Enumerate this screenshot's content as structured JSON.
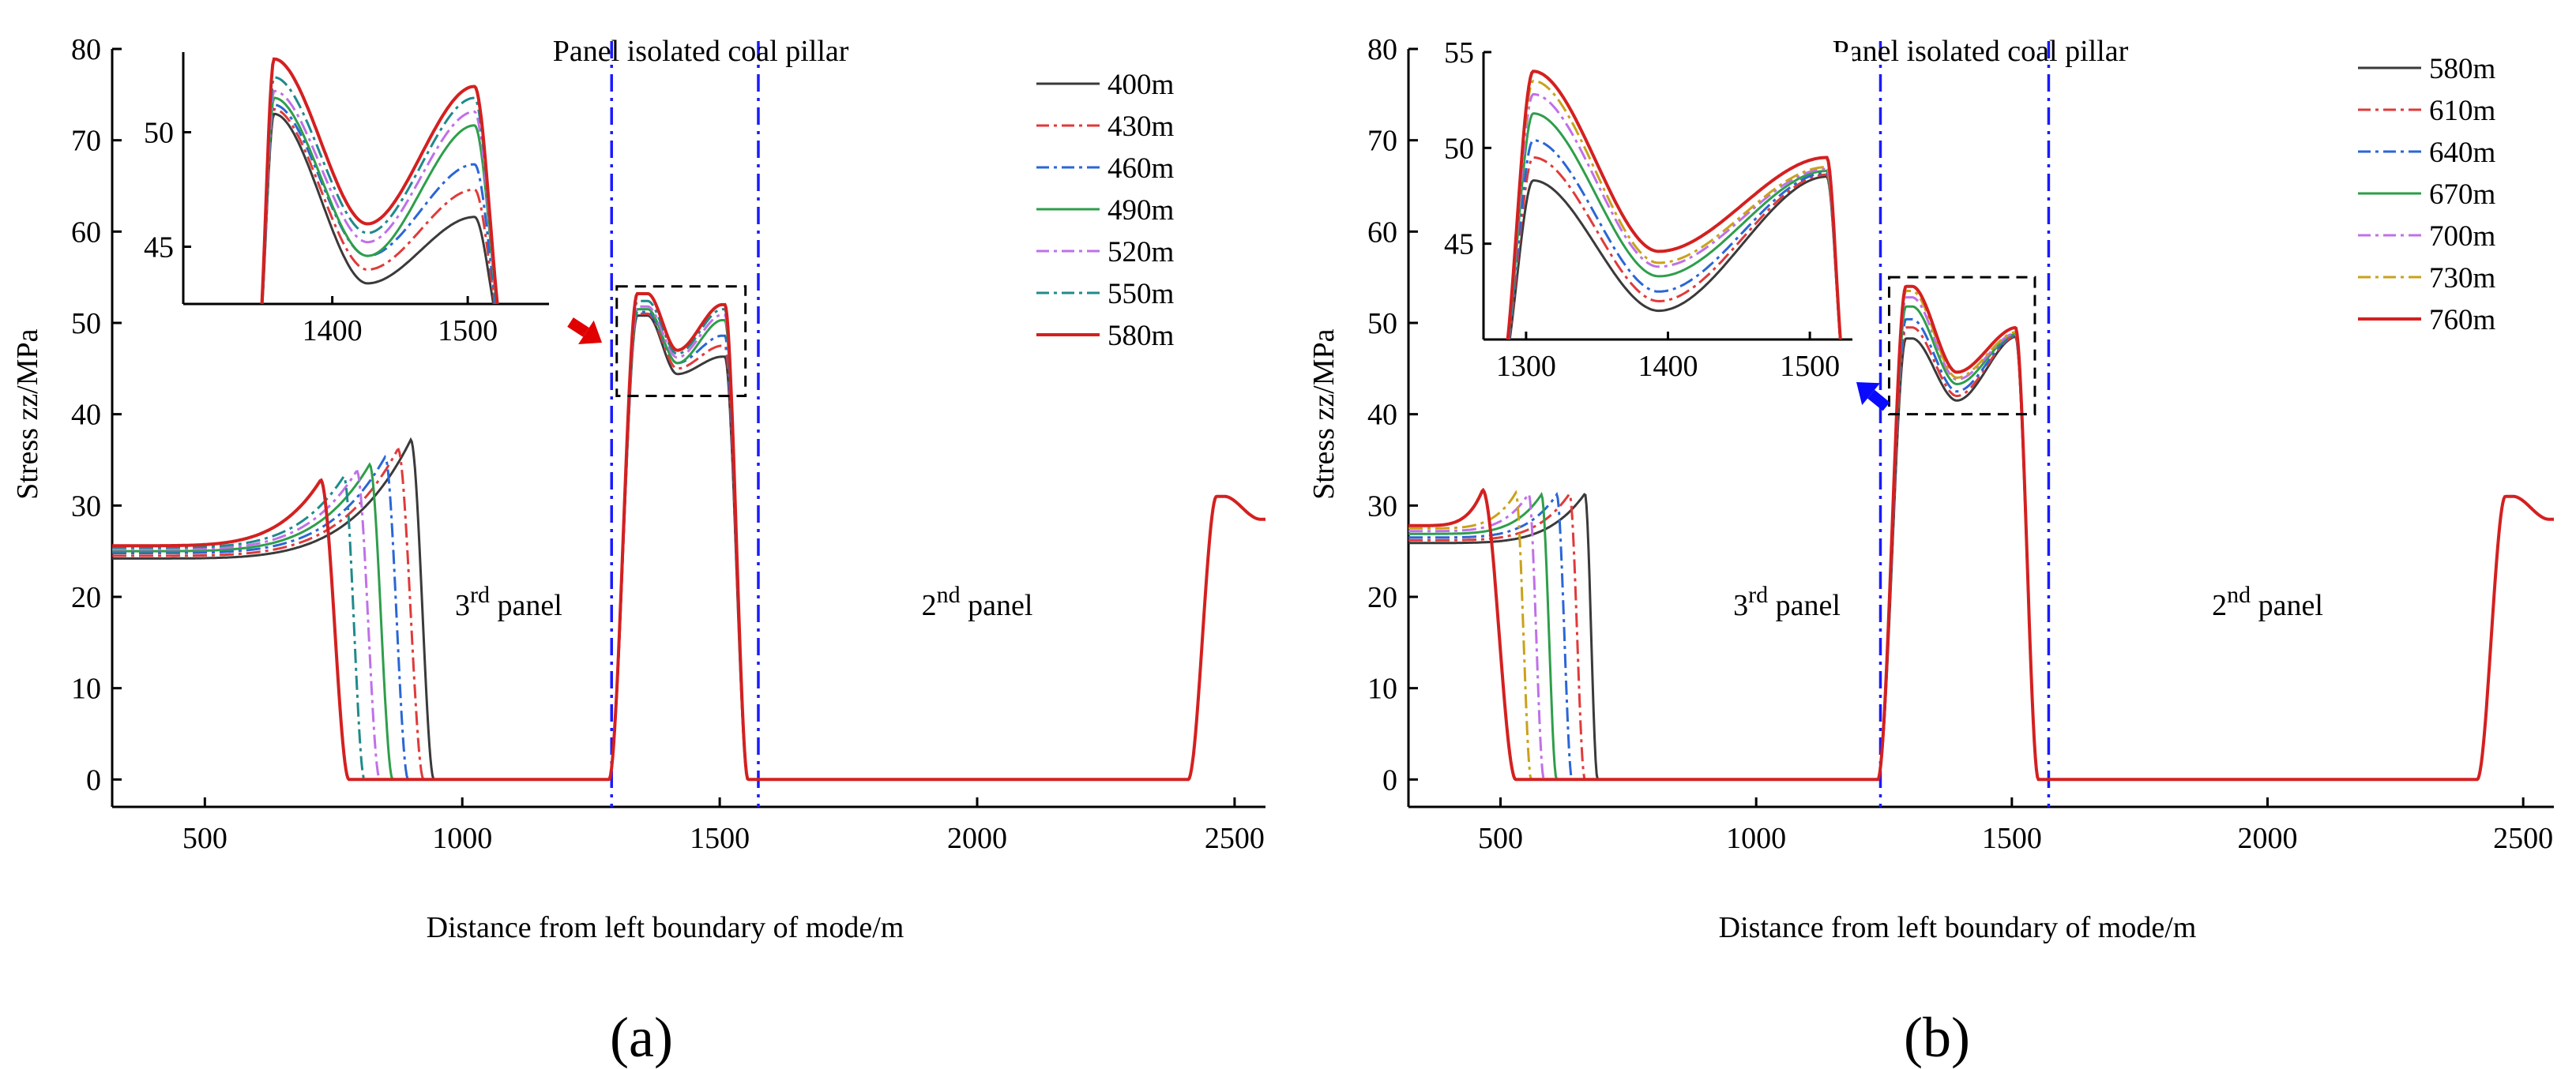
{
  "chart_data": [
    {
      "type": "line",
      "id": "a",
      "caption": "(a)",
      "title": "",
      "xlabel": "Distance from left boundary of mode/m",
      "ylabel": "Stress zz/MPa",
      "xlim": [
        320,
        2560
      ],
      "ylim": [
        -3,
        80
      ],
      "xticks": [
        500,
        1000,
        1500,
        2000,
        2500
      ],
      "yticks": [
        0,
        10,
        20,
        30,
        40,
        50,
        60,
        70,
        80
      ],
      "vlines": [
        1290,
        1575
      ],
      "top_annotation": "Panel isolated coal pillar",
      "panel_labels": [
        {
          "base": "3",
          "sup": "rd",
          "rest": " panel",
          "x": 1090,
          "y": 18
        },
        {
          "base": "2",
          "sup": "nd",
          "rest": " panel",
          "x": 2000,
          "y": 18
        }
      ],
      "zoom_box": {
        "x": [
          1300,
          1550
        ],
        "y": [
          42,
          54
        ]
      },
      "inset": {
        "xlim": [
          1290,
          1560
        ],
        "ylim": [
          42.5,
          53.5
        ],
        "xticks": [
          1400,
          1500
        ],
        "yticks": [
          45,
          50
        ]
      },
      "tail_peak": {
        "x": 2480,
        "y": 31
      },
      "series": [
        {
          "name": "400m",
          "color": "#3a3a3a",
          "dash": "",
          "face": 945,
          "peak_x": 900,
          "peak_y": 37.2,
          "base_left": 24.2,
          "ridge_floor": 800,
          "pillar_p1": 50.8,
          "pillar_v": 44.4,
          "pillar_p2": 46.3
        },
        {
          "name": "430m",
          "color": "#e03a3a",
          "dash": "18 6 4 6",
          "face": 925,
          "peak_x": 875,
          "peak_y": 36.2,
          "base_left": 24.5,
          "ridge_floor": 790,
          "pillar_p1": 51.0,
          "pillar_v": 45.0,
          "pillar_p2": 47.5
        },
        {
          "name": "460m",
          "color": "#2a66d6",
          "dash": "18 6 4 6",
          "face": 895,
          "peak_x": 850,
          "peak_y": 35.3,
          "base_left": 24.8,
          "ridge_floor": 780,
          "pillar_p1": 51.2,
          "pillar_v": 45.6,
          "pillar_p2": 48.6
        },
        {
          "name": "490m",
          "color": "#2e9e4a",
          "dash": "",
          "face": 865,
          "peak_x": 820,
          "peak_y": 34.5,
          "base_left": 25.0,
          "ridge_floor": 770,
          "pillar_p1": 51.5,
          "pillar_v": 45.6,
          "pillar_p2": 50.3
        },
        {
          "name": "520m",
          "color": "#c070e8",
          "dash": "18 6 4 6",
          "face": 840,
          "peak_x": 795,
          "peak_y": 33.8,
          "base_left": 25.2,
          "ridge_floor": 760,
          "pillar_p1": 51.8,
          "pillar_v": 46.2,
          "pillar_p2": 50.9
        },
        {
          "name": "550m",
          "color": "#1f8a8a",
          "dash": "18 6 4 6",
          "face": 810,
          "peak_x": 770,
          "peak_y": 33.2,
          "base_left": 25.4,
          "ridge_floor": 750,
          "pillar_p1": 52.4,
          "pillar_v": 46.6,
          "pillar_p2": 51.5
        },
        {
          "name": "580m",
          "color": "#d42020",
          "dash": "",
          "face": 780,
          "peak_x": 725,
          "peak_y": 32.8,
          "base_left": 25.6,
          "ridge_floor": 740,
          "pillar_p1": 53.2,
          "pillar_v": 47.0,
          "pillar_p2": 52.0
        }
      ]
    },
    {
      "type": "line",
      "id": "b",
      "caption": "(b)",
      "title": "",
      "xlabel": "Distance from left boundary of mode/m",
      "ylabel": "Stress zz/MPa",
      "xlim": [
        320,
        2560
      ],
      "ylim": [
        -3,
        80
      ],
      "xticks": [
        500,
        1000,
        1500,
        2000,
        2500
      ],
      "yticks": [
        0,
        10,
        20,
        30,
        40,
        50,
        60,
        70,
        80
      ],
      "vlines": [
        1243,
        1572
      ],
      "top_annotation": "Panel isolated coal pillar",
      "panel_labels": [
        {
          "base": "3",
          "sup": "rd",
          "rest": " panel",
          "x": 1060,
          "y": 18
        },
        {
          "base": "2",
          "sup": "nd",
          "rest": " panel",
          "x": 2000,
          "y": 18
        }
      ],
      "zoom_box": {
        "x": [
          1260,
          1545
        ],
        "y": [
          40,
          55
        ]
      },
      "inset": {
        "xlim": [
          1270,
          1530
        ],
        "ylim": [
          40,
          55
        ],
        "xticks": [
          1300,
          1400,
          1500
        ],
        "yticks": [
          45,
          50,
          55
        ]
      },
      "tail_peak": {
        "x": 2480,
        "y": 31
      },
      "series": [
        {
          "name": "580m",
          "color": "#3a3a3a",
          "dash": "",
          "face": 690,
          "peak_x": 665,
          "peak_y": 31.3,
          "base_left": 25.9,
          "pillar_p1": 48.3,
          "pillar_v": 41.5,
          "pillar_p2": 48.5
        },
        {
          "name": "610m",
          "color": "#e03a3a",
          "dash": "18 6 4 6",
          "face": 665,
          "peak_x": 635,
          "peak_y": 31.3,
          "base_left": 26.2,
          "pillar_p1": 49.5,
          "pillar_v": 42.0,
          "pillar_p2": 48.6
        },
        {
          "name": "640m",
          "color": "#2a66d6",
          "dash": "18 6 4 6",
          "face": 640,
          "peak_x": 610,
          "peak_y": 31.2,
          "base_left": 26.5,
          "pillar_p1": 50.4,
          "pillar_v": 42.5,
          "pillar_p2": 48.7
        },
        {
          "name": "670m",
          "color": "#2e9e4a",
          "dash": "",
          "face": 610,
          "peak_x": 580,
          "peak_y": 31.2,
          "base_left": 26.9,
          "pillar_p1": 51.8,
          "pillar_v": 43.3,
          "pillar_p2": 48.8
        },
        {
          "name": "700m",
          "color": "#c070e8",
          "dash": "18 6 4 6",
          "face": 585,
          "peak_x": 555,
          "peak_y": 31.3,
          "base_left": 27.2,
          "pillar_p1": 52.8,
          "pillar_v": 43.8,
          "pillar_p2": 48.9
        },
        {
          "name": "730m",
          "color": "#c9a21a",
          "dash": "18 6 4 6",
          "face": 560,
          "peak_x": 530,
          "peak_y": 31.4,
          "base_left": 27.5,
          "pillar_p1": 53.5,
          "pillar_v": 44.0,
          "pillar_p2": 49.0
        },
        {
          "name": "760m",
          "color": "#d42020",
          "dash": "",
          "face": 530,
          "peak_x": 465,
          "peak_y": 31.7,
          "base_left": 27.8,
          "pillar_p1": 54.0,
          "pillar_v": 44.6,
          "pillar_p2": 49.5
        }
      ]
    }
  ]
}
